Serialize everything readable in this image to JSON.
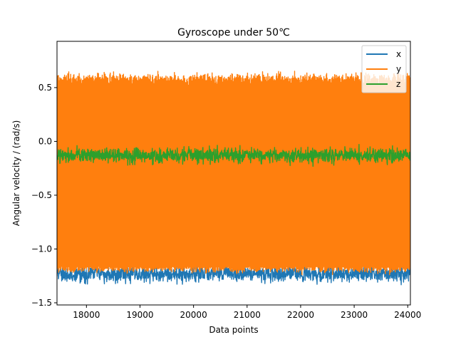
{
  "chart_data": {
    "type": "line",
    "title": "Gyroscope under 50℃",
    "xlabel": "Data points",
    "ylabel": "Angular velocity / (rad/s)",
    "xlim": [
      17450,
      24050
    ],
    "ylim": [
      -1.52,
      0.93
    ],
    "x_range": [
      17450,
      24050
    ],
    "xticks": [
      18000,
      19000,
      20000,
      21000,
      22000,
      23000,
      24000
    ],
    "xtick_labels": [
      "18000",
      "19000",
      "20000",
      "21000",
      "22000",
      "23000",
      "24000"
    ],
    "yticks": [
      -1.5,
      -1.0,
      -0.5,
      0.0,
      0.5
    ],
    "ytick_labels": [
      "−1.5",
      "−1.0",
      "−0.5",
      "0.0",
      "0.5"
    ],
    "grid": false,
    "legend_position": "top-right",
    "series": [
      {
        "name": "x",
        "color": "#1f77b4",
        "mean": -1.23,
        "amplitude": 0.07,
        "lower_extreme": -1.38,
        "upper_extreme": -1.02
      },
      {
        "name": "y",
        "color": "#ff7f0e",
        "low_band": -1.16,
        "high_band": 0.58,
        "lower_extreme": -1.35,
        "upper_extreme": 0.83
      },
      {
        "name": "z",
        "color": "#2ca02c",
        "mean": -0.13,
        "amplitude": 0.06,
        "lower_extreme": -0.29,
        "upper_extreme": 0.06
      }
    ]
  }
}
